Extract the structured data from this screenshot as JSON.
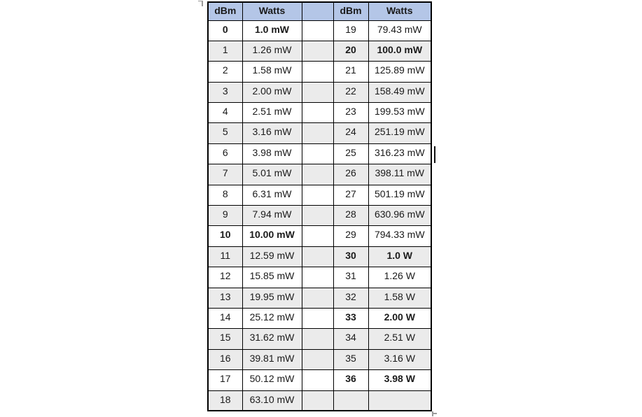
{
  "colors": {
    "header_bg": "#b4c6e7",
    "row_shade": "#ebebeb",
    "border_color": "#000000",
    "text_color": "#1a1a1a"
  },
  "icons": {
    "text_cursor": "caret-bar",
    "table_move_handle": "corner-mark",
    "table_resize_handle": "corner-handle"
  },
  "table": {
    "headers": [
      "dBm",
      "Watts",
      "",
      "dBm",
      "Watts"
    ],
    "rows": [
      {
        "dbm_l": "0",
        "watts_l": "1.0 mW",
        "bold_l": true,
        "dbm_r": "19",
        "watts_r": "79.43 mW",
        "bold_r": false,
        "shaded": false
      },
      {
        "dbm_l": "1",
        "watts_l": "1.26 mW",
        "bold_l": false,
        "dbm_r": "20",
        "watts_r": "100.0 mW",
        "bold_r": true,
        "shaded": true
      },
      {
        "dbm_l": "2",
        "watts_l": "1.58 mW",
        "bold_l": false,
        "dbm_r": "21",
        "watts_r": "125.89 mW",
        "bold_r": false,
        "shaded": false
      },
      {
        "dbm_l": "3",
        "watts_l": "2.00 mW",
        "bold_l": false,
        "dbm_r": "22",
        "watts_r": "158.49 mW",
        "bold_r": false,
        "shaded": true
      },
      {
        "dbm_l": "4",
        "watts_l": "2.51 mW",
        "bold_l": false,
        "dbm_r": "23",
        "watts_r": "199.53 mW",
        "bold_r": false,
        "shaded": false
      },
      {
        "dbm_l": "5",
        "watts_l": "3.16 mW",
        "bold_l": false,
        "dbm_r": "24",
        "watts_r": "251.19 mW",
        "bold_r": false,
        "shaded": true
      },
      {
        "dbm_l": "6",
        "watts_l": "3.98 mW",
        "bold_l": false,
        "dbm_r": "25",
        "watts_r": "316.23 mW",
        "bold_r": false,
        "shaded": false
      },
      {
        "dbm_l": "7",
        "watts_l": "5.01 mW",
        "bold_l": false,
        "dbm_r": "26",
        "watts_r": "398.11 mW",
        "bold_r": false,
        "shaded": true
      },
      {
        "dbm_l": "8",
        "watts_l": "6.31 mW",
        "bold_l": false,
        "dbm_r": "27",
        "watts_r": "501.19 mW",
        "bold_r": false,
        "shaded": false
      },
      {
        "dbm_l": "9",
        "watts_l": "7.94 mW",
        "bold_l": false,
        "dbm_r": "28",
        "watts_r": "630.96 mW",
        "bold_r": false,
        "shaded": true
      },
      {
        "dbm_l": "10",
        "watts_l": "10.00 mW",
        "bold_l": true,
        "dbm_r": "29",
        "watts_r": "794.33 mW",
        "bold_r": false,
        "shaded": false
      },
      {
        "dbm_l": "11",
        "watts_l": "12.59 mW",
        "bold_l": false,
        "dbm_r": "30",
        "watts_r": "1.0 W",
        "bold_r": true,
        "shaded": true
      },
      {
        "dbm_l": "12",
        "watts_l": "15.85 mW",
        "bold_l": false,
        "dbm_r": "31",
        "watts_r": "1.26 W",
        "bold_r": false,
        "shaded": false
      },
      {
        "dbm_l": "13",
        "watts_l": "19.95 mW",
        "bold_l": false,
        "dbm_r": "32",
        "watts_r": "1.58 W",
        "bold_r": false,
        "shaded": true
      },
      {
        "dbm_l": "14",
        "watts_l": "25.12 mW",
        "bold_l": false,
        "dbm_r": "33",
        "watts_r": "2.00 W",
        "bold_r": true,
        "shaded": false
      },
      {
        "dbm_l": "15",
        "watts_l": "31.62 mW",
        "bold_l": false,
        "dbm_r": "34",
        "watts_r": "2.51 W",
        "bold_r": false,
        "shaded": true
      },
      {
        "dbm_l": "16",
        "watts_l": "39.81 mW",
        "bold_l": false,
        "dbm_r": "35",
        "watts_r": "3.16 W",
        "bold_r": false,
        "shaded": true
      },
      {
        "dbm_l": "17",
        "watts_l": "50.12 mW",
        "bold_l": false,
        "dbm_r": "36",
        "watts_r": "3.98 W",
        "bold_r": true,
        "shaded": false
      },
      {
        "dbm_l": "18",
        "watts_l": "63.10 mW",
        "bold_l": false,
        "dbm_r": "",
        "watts_r": "",
        "bold_r": false,
        "shaded": true
      }
    ]
  }
}
